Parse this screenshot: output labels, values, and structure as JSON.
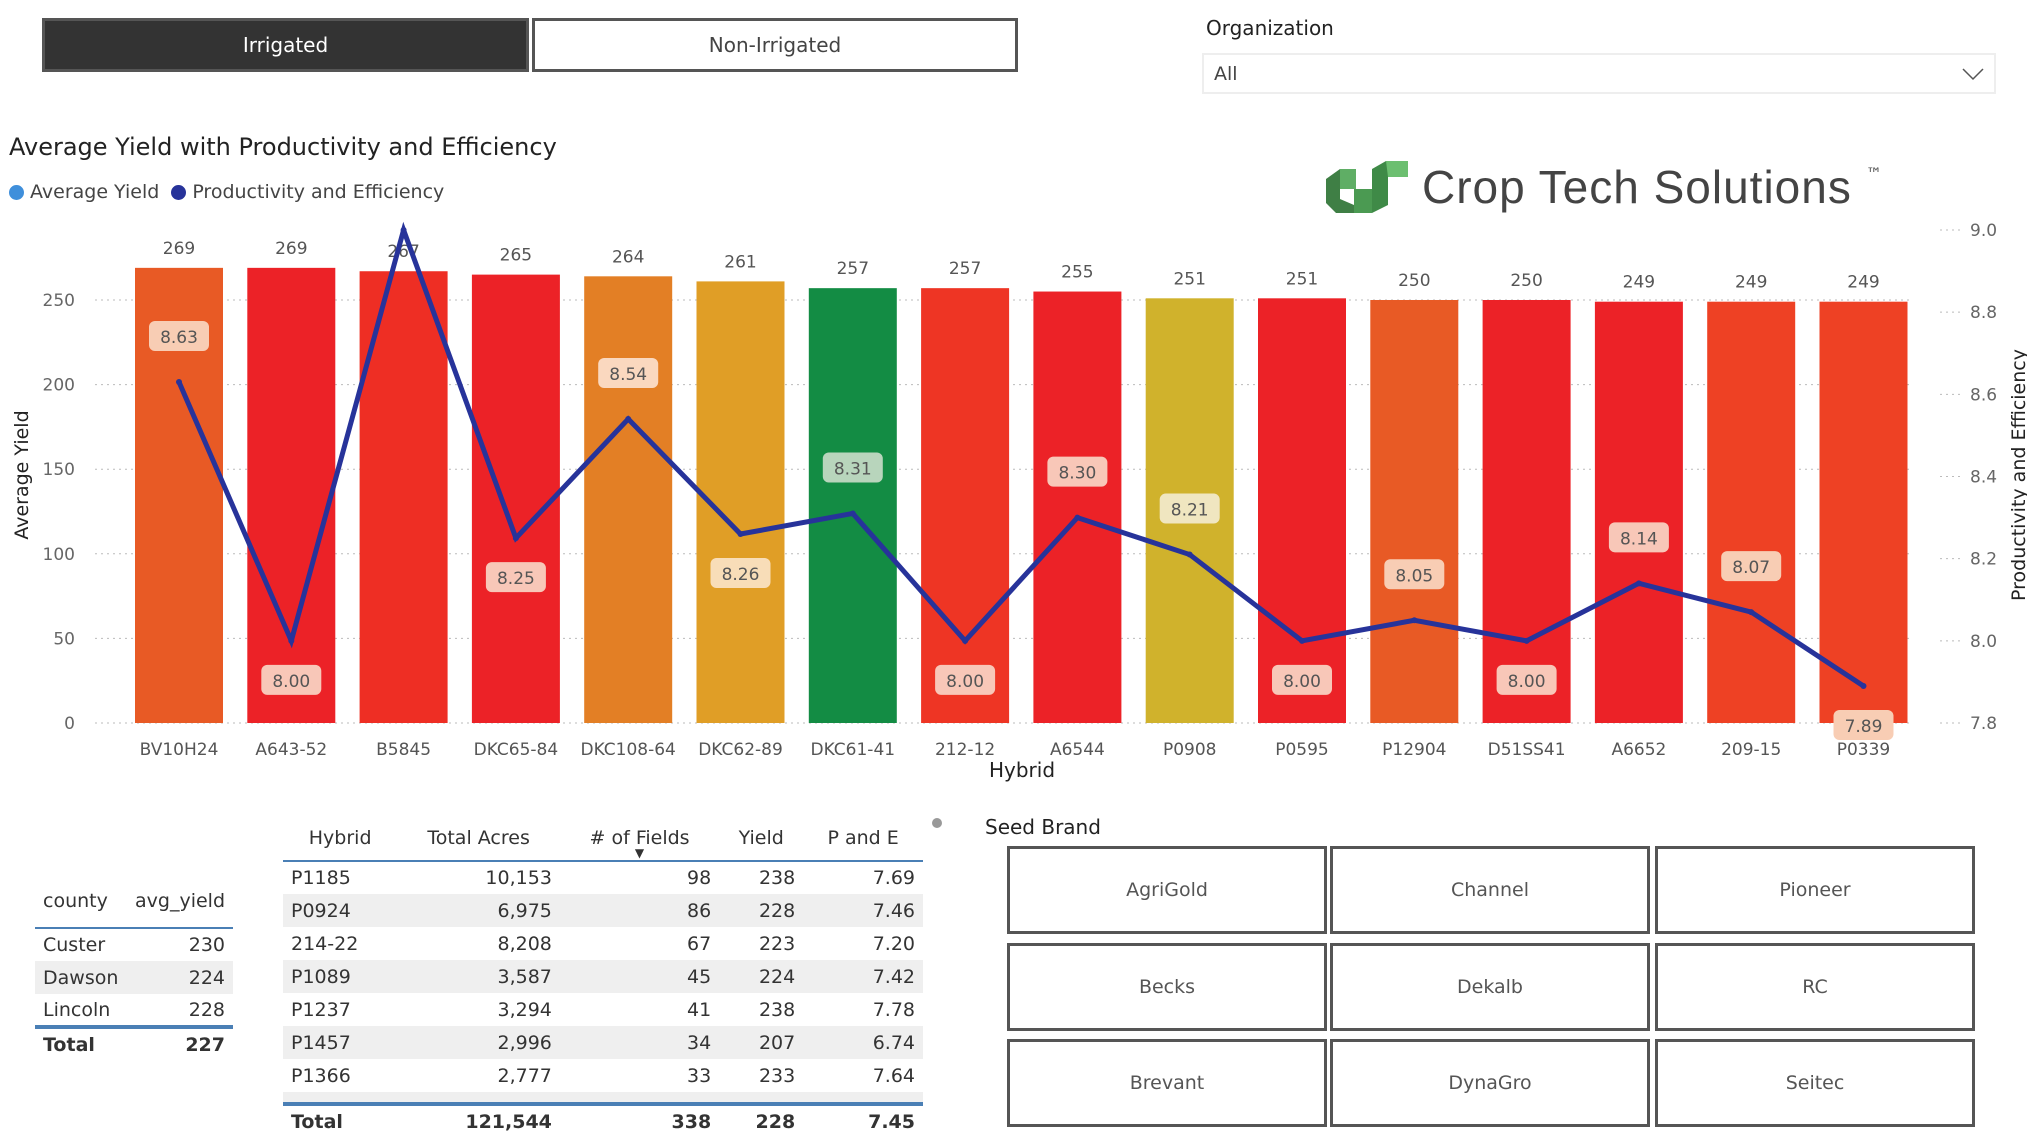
{
  "toggles": {
    "irrigated": "Irrigated",
    "non_irrigated": "Non-Irrigated",
    "selected": "Irrigated"
  },
  "organization": {
    "label": "Organization",
    "value": "All"
  },
  "logo": {
    "text": "Crop Tech Solutions",
    "tm": "™"
  },
  "chart_data": {
    "type": "bar+line",
    "title": "Average Yield with Productivity and Efficiency",
    "legend": [
      {
        "name": "Average Yield",
        "color": "#3F8FDB"
      },
      {
        "name": "Productivity and Efficiency",
        "color": "#27339A"
      }
    ],
    "xlabel": "Hybrid",
    "ylabel": "Average Yield",
    "y2label": "Productivity and Efficiency",
    "ylim": [
      0,
      291
    ],
    "yticks": [
      "0",
      "50",
      "100",
      "150",
      "200",
      "250"
    ],
    "y2lim": [
      7.8,
      9.0
    ],
    "y2ticks": [
      "7.8",
      "8.0",
      "8.2",
      "8.4",
      "8.6",
      "8.8",
      "9.0"
    ],
    "categories": [
      "BV10H24",
      "A643-52",
      "B5845",
      "DKC65-84",
      "DKC108-64",
      "DKC62-89",
      "DKC61-41",
      "212-12",
      "A6544",
      "P0908",
      "P0595",
      "P12904",
      "D51SS41",
      "A6652",
      "209-15",
      "P0339"
    ],
    "yield": [
      269,
      269,
      267,
      265,
      264,
      261,
      257,
      257,
      255,
      251,
      251,
      250,
      250,
      249,
      249,
      249
    ],
    "yield_labels": [
      "269",
      "269",
      "267",
      "265",
      "264",
      "261",
      "257",
      "257",
      "255",
      "251",
      "251",
      "250",
      "250",
      "249",
      "249",
      "249"
    ],
    "pe": [
      8.63,
      8.0,
      9.0,
      8.25,
      8.54,
      8.26,
      8.31,
      8.0,
      8.3,
      8.21,
      8.0,
      8.05,
      8.0,
      8.14,
      8.07,
      7.89
    ],
    "pe_labels": [
      "8.63",
      "8.00",
      null,
      "8.25",
      "8.54",
      "8.26",
      "8.31",
      "8.00",
      "8.30",
      "8.21",
      "8.00",
      "8.05",
      "8.00",
      "8.14",
      "8.07",
      "7.89"
    ],
    "bar_colors": [
      "#E85A25",
      "#EC2227",
      "#EE2E24",
      "#EC2227",
      "#E37F25",
      "#E09E26",
      "#138C44",
      "#EE3524",
      "#EC2227",
      "#D0B22C",
      "#EC2227",
      "#E85A25",
      "#EC2227",
      "#EC2227",
      "#EE4124",
      "#EE4124"
    ],
    "label_bg": [
      "#F8CDB4",
      "#F8C7B8",
      "#F8C7B8",
      "#F8C7B8",
      "#FAD8BF",
      "#F8DDB8",
      "#B8D5BC",
      "#F8C7B8",
      "#F8C7B8",
      "#F0E6C0",
      "#F8C7B8",
      "#F8CDB4",
      "#F8C7B8",
      "#F8C7B8",
      "#F8CDB4",
      "#F8CDB4"
    ],
    "line_color": "#27339A"
  },
  "county_table": {
    "headers": [
      "county",
      "avg_yield"
    ],
    "rows": [
      [
        "Custer",
        "230"
      ],
      [
        "Dawson",
        "224"
      ],
      [
        "Lincoln",
        "228"
      ]
    ],
    "total": [
      "Total",
      "227"
    ]
  },
  "hybrid_table": {
    "headers": [
      "Hybrid",
      "Total Acres",
      "# of Fields",
      "Yield",
      "P and E"
    ],
    "sort_indicator": "▼",
    "rows": [
      [
        "P1185",
        "10,153",
        "98",
        "238",
        "7.69"
      ],
      [
        "P0924",
        "6,975",
        "86",
        "228",
        "7.46"
      ],
      [
        "214-22",
        "8,208",
        "67",
        "223",
        "7.20"
      ],
      [
        "P1089",
        "3,587",
        "45",
        "224",
        "7.42"
      ],
      [
        "P1237",
        "3,294",
        "41",
        "238",
        "7.78"
      ],
      [
        "P1457",
        "2,996",
        "34",
        "207",
        "6.74"
      ],
      [
        "P1366",
        "2,777",
        "33",
        "233",
        "7.64"
      ]
    ],
    "total": [
      "Total",
      "121,544",
      "338",
      "228",
      "7.45"
    ]
  },
  "seed_brand": {
    "title": "Seed Brand",
    "options": [
      "AgriGold",
      "Channel",
      "Pioneer",
      "Becks",
      "Dekalb",
      "RC",
      "Brevant",
      "DynaGro",
      "Seitec"
    ]
  }
}
